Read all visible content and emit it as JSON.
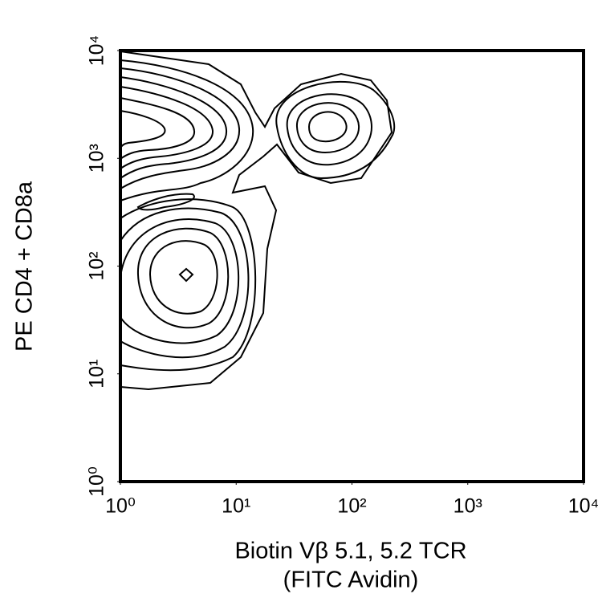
{
  "chart_data": {
    "type": "contour",
    "x_label": [
      "Biotin Vβ 5.1, 5.2 TCR",
      "(FITC Avidin)"
    ],
    "y_label": "PE CD4 + CD8a",
    "x_scale": "log",
    "y_scale": "log",
    "xlim": [
      1,
      10000
    ],
    "ylim": [
      1,
      10000
    ],
    "xticks": [
      {
        "value": 1,
        "label": "10⁰"
      },
      {
        "value": 10,
        "label": "10¹"
      },
      {
        "value": 100,
        "label": "10²"
      },
      {
        "value": 1000,
        "label": "10³"
      },
      {
        "value": 10000,
        "label": "10⁴"
      }
    ],
    "yticks": [
      {
        "value": 1,
        "label": "10⁰"
      },
      {
        "value": 10,
        "label": "10¹"
      },
      {
        "value": 100,
        "label": "10²"
      },
      {
        "value": 1000,
        "label": "10³"
      },
      {
        "value": 10000,
        "label": "10⁴"
      }
    ],
    "color": "#000000"
  }
}
